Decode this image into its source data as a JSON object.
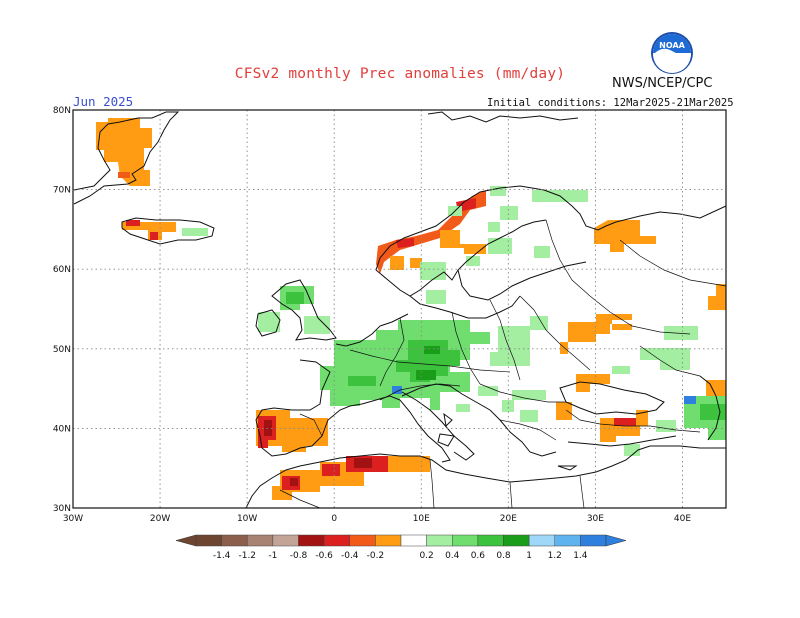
{
  "header": {
    "title": "CFSv2 monthly Prec anomalies (mm/day)",
    "agency": "NWS/NCEP/CPC",
    "month": "Jun 2025",
    "initial_conditions": "Initial conditions: 12Mar2025-21Mar2025",
    "logo_text": "NOAA"
  },
  "map": {
    "lat_labels": [
      "80N",
      "70N",
      "60N",
      "50N",
      "40N",
      "30N"
    ],
    "lat_values": [
      80,
      70,
      60,
      50,
      40,
      30
    ],
    "lon_labels": [
      "30W",
      "20W",
      "10W",
      "0",
      "10E",
      "20E",
      "30E",
      "40E"
    ],
    "lon_values": [
      -30,
      -20,
      -10,
      0,
      10,
      20,
      30,
      40
    ],
    "lon_range": [
      -30,
      45
    ],
    "lat_range": [
      30,
      80
    ]
  },
  "legend": {
    "tick_labels": [
      "-1.4",
      "-1.2",
      "-1",
      "-0.8",
      "-0.6",
      "-0.4",
      "-0.2",
      "0.2",
      "0.4",
      "0.6",
      "0.8",
      "1",
      "1.2",
      "1.4"
    ],
    "colors": [
      "#6e4530",
      "#8c5f4c",
      "#a88272",
      "#c3a598",
      "#a31212",
      "#dc1f1f",
      "#f25a19",
      "#ff9c14",
      "#ffffff",
      "#a3eea0",
      "#6fde6f",
      "#3dc23d",
      "#1a9e1a",
      "#9ed7f7",
      "#5fb4ef",
      "#2f7fdf"
    ]
  },
  "colors": {
    "title": "#e0403c",
    "month": "#3b4fd6",
    "drier": "#ff9c14",
    "wetter": "#6fde6f"
  }
}
